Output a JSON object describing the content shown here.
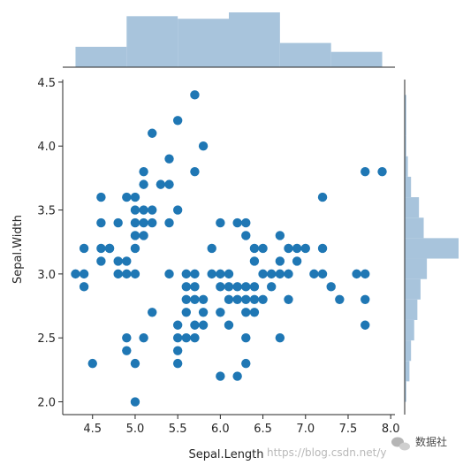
{
  "chart_data": {
    "type": "scatter",
    "subtype": "jointplot",
    "title": "",
    "xlabel": "Sepal.Length",
    "ylabel": "Sepal.Width",
    "xlim": [
      4.15,
      8.05
    ],
    "ylim": [
      1.9,
      4.52
    ],
    "xticks": [
      "4.5",
      "5.0",
      "5.5",
      "6.0",
      "6.5",
      "7.0",
      "7.5",
      "8.0"
    ],
    "yticks": [
      "2.0",
      "2.5",
      "3.0",
      "3.5",
      "4.0",
      "4.5"
    ],
    "grid": false,
    "colors": {
      "points": "#1f77b4",
      "hist": "#a8c4dc",
      "axis": "#262626"
    },
    "points": [
      [
        4.3,
        3.0
      ],
      [
        4.4,
        3.0
      ],
      [
        4.4,
        2.9
      ],
      [
        4.4,
        3.2
      ],
      [
        4.5,
        2.3
      ],
      [
        4.6,
        3.4
      ],
      [
        4.6,
        3.6
      ],
      [
        4.6,
        3.1
      ],
      [
        4.6,
        3.2
      ],
      [
        4.7,
        3.2
      ],
      [
        4.7,
        3.2
      ],
      [
        4.8,
        3.0
      ],
      [
        4.8,
        3.1
      ],
      [
        4.8,
        3.4
      ],
      [
        4.9,
        3.0
      ],
      [
        4.9,
        3.1
      ],
      [
        4.9,
        3.6
      ],
      [
        4.9,
        2.5
      ],
      [
        4.9,
        2.4
      ],
      [
        5.0,
        3.0
      ],
      [
        5.0,
        3.2
      ],
      [
        5.0,
        3.3
      ],
      [
        5.0,
        3.4
      ],
      [
        5.0,
        3.5
      ],
      [
        5.0,
        3.6
      ],
      [
        5.0,
        2.3
      ],
      [
        5.0,
        2.0
      ],
      [
        5.1,
        3.3
      ],
      [
        5.1,
        3.4
      ],
      [
        5.1,
        3.5
      ],
      [
        5.1,
        3.7
      ],
      [
        5.1,
        3.8
      ],
      [
        5.1,
        2.5
      ],
      [
        5.2,
        2.7
      ],
      [
        5.2,
        3.4
      ],
      [
        5.2,
        3.5
      ],
      [
        5.2,
        4.1
      ],
      [
        5.3,
        3.7
      ],
      [
        5.4,
        3.0
      ],
      [
        5.4,
        3.4
      ],
      [
        5.4,
        3.7
      ],
      [
        5.4,
        3.9
      ],
      [
        5.5,
        2.3
      ],
      [
        5.5,
        2.4
      ],
      [
        5.5,
        2.5
      ],
      [
        5.5,
        2.6
      ],
      [
        5.5,
        3.5
      ],
      [
        5.5,
        4.2
      ],
      [
        5.6,
        2.5
      ],
      [
        5.6,
        2.7
      ],
      [
        5.6,
        2.8
      ],
      [
        5.6,
        2.9
      ],
      [
        5.6,
        3.0
      ],
      [
        5.7,
        2.5
      ],
      [
        5.7,
        2.6
      ],
      [
        5.7,
        2.8
      ],
      [
        5.7,
        2.9
      ],
      [
        5.7,
        3.0
      ],
      [
        5.7,
        3.8
      ],
      [
        5.7,
        4.4
      ],
      [
        5.8,
        2.6
      ],
      [
        5.8,
        2.7
      ],
      [
        5.8,
        2.8
      ],
      [
        5.8,
        4.0
      ],
      [
        5.9,
        3.0
      ],
      [
        5.9,
        3.2
      ],
      [
        6.0,
        2.2
      ],
      [
        6.0,
        2.7
      ],
      [
        6.0,
        2.9
      ],
      [
        6.0,
        3.0
      ],
      [
        6.0,
        3.4
      ],
      [
        6.1,
        2.6
      ],
      [
        6.1,
        2.8
      ],
      [
        6.1,
        2.9
      ],
      [
        6.1,
        3.0
      ],
      [
        6.2,
        2.2
      ],
      [
        6.2,
        2.8
      ],
      [
        6.2,
        2.9
      ],
      [
        6.2,
        3.4
      ],
      [
        6.3,
        2.3
      ],
      [
        6.3,
        2.5
      ],
      [
        6.3,
        2.7
      ],
      [
        6.3,
        2.8
      ],
      [
        6.3,
        2.9
      ],
      [
        6.3,
        3.3
      ],
      [
        6.3,
        3.4
      ],
      [
        6.4,
        2.7
      ],
      [
        6.4,
        2.8
      ],
      [
        6.4,
        2.9
      ],
      [
        6.4,
        3.1
      ],
      [
        6.4,
        3.2
      ],
      [
        6.5,
        2.8
      ],
      [
        6.5,
        3.0
      ],
      [
        6.5,
        3.2
      ],
      [
        6.6,
        2.9
      ],
      [
        6.6,
        3.0
      ],
      [
        6.7,
        2.5
      ],
      [
        6.7,
        3.0
      ],
      [
        6.7,
        3.1
      ],
      [
        6.7,
        3.3
      ],
      [
        6.8,
        2.8
      ],
      [
        6.8,
        3.0
      ],
      [
        6.8,
        3.2
      ],
      [
        6.9,
        3.1
      ],
      [
        6.9,
        3.2
      ],
      [
        7.0,
        3.2
      ],
      [
        7.1,
        3.0
      ],
      [
        7.2,
        3.0
      ],
      [
        7.2,
        3.2
      ],
      [
        7.2,
        3.6
      ],
      [
        7.3,
        2.9
      ],
      [
        7.4,
        2.8
      ],
      [
        7.6,
        3.0
      ],
      [
        7.7,
        2.6
      ],
      [
        7.7,
        2.8
      ],
      [
        7.7,
        3.0
      ],
      [
        7.7,
        3.8
      ],
      [
        7.9,
        3.8
      ]
    ],
    "x_hist": {
      "bins": [
        4.3,
        4.9,
        5.5,
        6.1,
        6.7,
        7.3,
        7.9
      ],
      "counts": [
        16,
        40,
        38,
        43,
        19,
        12
      ]
    },
    "y_hist": {
      "bins": [
        2.0,
        2.16,
        2.32,
        2.48,
        2.64,
        2.8,
        2.96,
        3.12,
        3.28,
        3.44,
        3.6,
        3.76,
        3.92,
        4.08,
        4.24,
        4.4
      ],
      "counts": [
        1,
        3,
        4,
        6,
        8,
        10,
        14,
        34,
        12,
        9,
        4,
        2,
        1,
        1,
        1
      ]
    }
  },
  "watermark": {
    "url_text": "https://blog.csdn.net/y",
    "brand": "数据社",
    "brand_icon": "wechat-icon"
  }
}
